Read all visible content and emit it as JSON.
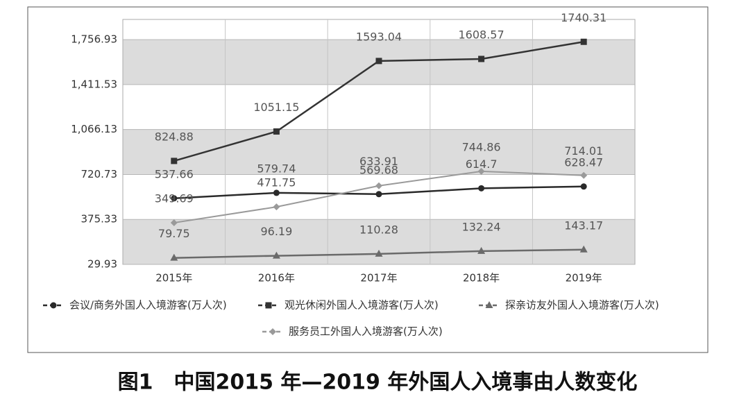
{
  "chart_data": {
    "type": "line",
    "categories": [
      "2015年",
      "2016年",
      "2017年",
      "2018年",
      "2019年"
    ],
    "series": [
      {
        "name": "会议/商务外国人入境游客(万人次)",
        "color": "#2a2a2a",
        "marker": "circle",
        "values": [
          537.66,
          579.74,
          569.68,
          614.7,
          628.47
        ]
      },
      {
        "name": "观光休闲外国人入境游客(万人次)",
        "color": "#333333",
        "marker": "square",
        "values": [
          824.88,
          1051.15,
          1593.04,
          1608.57,
          1740.31
        ]
      },
      {
        "name": "探亲访友外国人入境游客(万人次)",
        "color": "#6a6a6a",
        "marker": "triangle",
        "values": [
          79.75,
          96.19,
          110.28,
          132.24,
          143.17
        ]
      },
      {
        "name": "服务员工外国人入境游客(万人次)",
        "color": "#9a9a9a",
        "marker": "diamond",
        "values": [
          349.69,
          471.75,
          633.91,
          744.86,
          714.01
        ]
      }
    ],
    "ylim": [
      29.93,
      1912.3
    ],
    "yticks": [
      29.93,
      375.33,
      720.73,
      {
        "value": 1066.13,
        "label": "1,066.13"
      },
      {
        "value": 1411.53,
        "label": "1,411.53"
      },
      {
        "value": 1756.93,
        "label": "1,756.93"
      }
    ],
    "grid": true,
    "caption": "图1　中国2015 年—2019 年外国人入境事由人数变化"
  }
}
